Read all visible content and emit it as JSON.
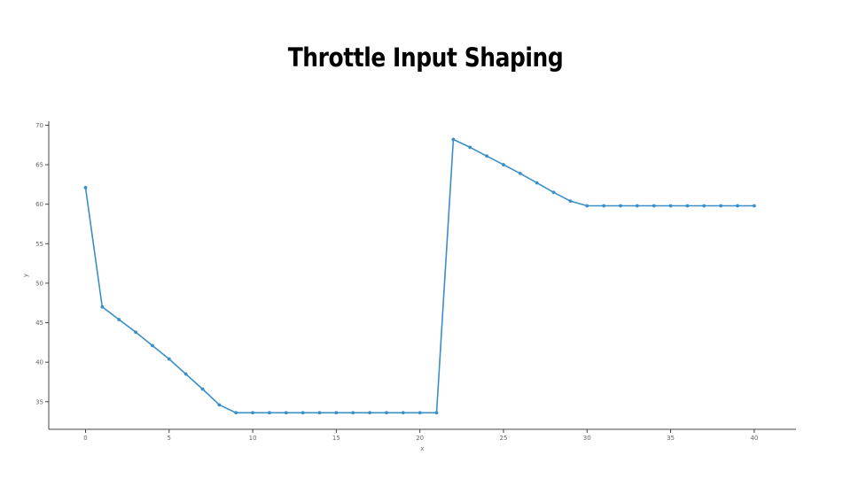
{
  "title": "Throttle Input Shaping",
  "chart_data": {
    "type": "line",
    "title": "Throttle Input Shaping",
    "xlabel": "x",
    "ylabel": "y",
    "xlim": [
      -2.2,
      42.5
    ],
    "ylim": [
      31.5,
      70.5
    ],
    "xticks": [
      0,
      5,
      10,
      15,
      20,
      25,
      30,
      35,
      40
    ],
    "yticks": [
      35,
      40,
      45,
      50,
      55,
      60,
      65,
      70
    ],
    "grid": false,
    "color": "#3a8fc9",
    "markers": true,
    "x": [
      0,
      1,
      2,
      3,
      4,
      5,
      6,
      7,
      8,
      9,
      10,
      11,
      12,
      13,
      14,
      15,
      16,
      17,
      18,
      19,
      20,
      21,
      22,
      23,
      24,
      25,
      26,
      27,
      28,
      29,
      30,
      31,
      32,
      33,
      34,
      35,
      36,
      37,
      38,
      39,
      40
    ],
    "y": [
      62.1,
      47.0,
      45.4,
      43.8,
      42.1,
      40.4,
      38.5,
      36.6,
      34.6,
      33.6,
      33.6,
      33.6,
      33.6,
      33.6,
      33.6,
      33.6,
      33.6,
      33.6,
      33.6,
      33.6,
      33.6,
      33.6,
      68.2,
      67.2,
      66.1,
      65.0,
      63.9,
      62.7,
      61.5,
      60.4,
      59.8,
      59.8,
      59.8,
      59.8,
      59.8,
      59.8,
      59.8,
      59.8,
      59.8,
      59.8,
      59.8
    ]
  }
}
